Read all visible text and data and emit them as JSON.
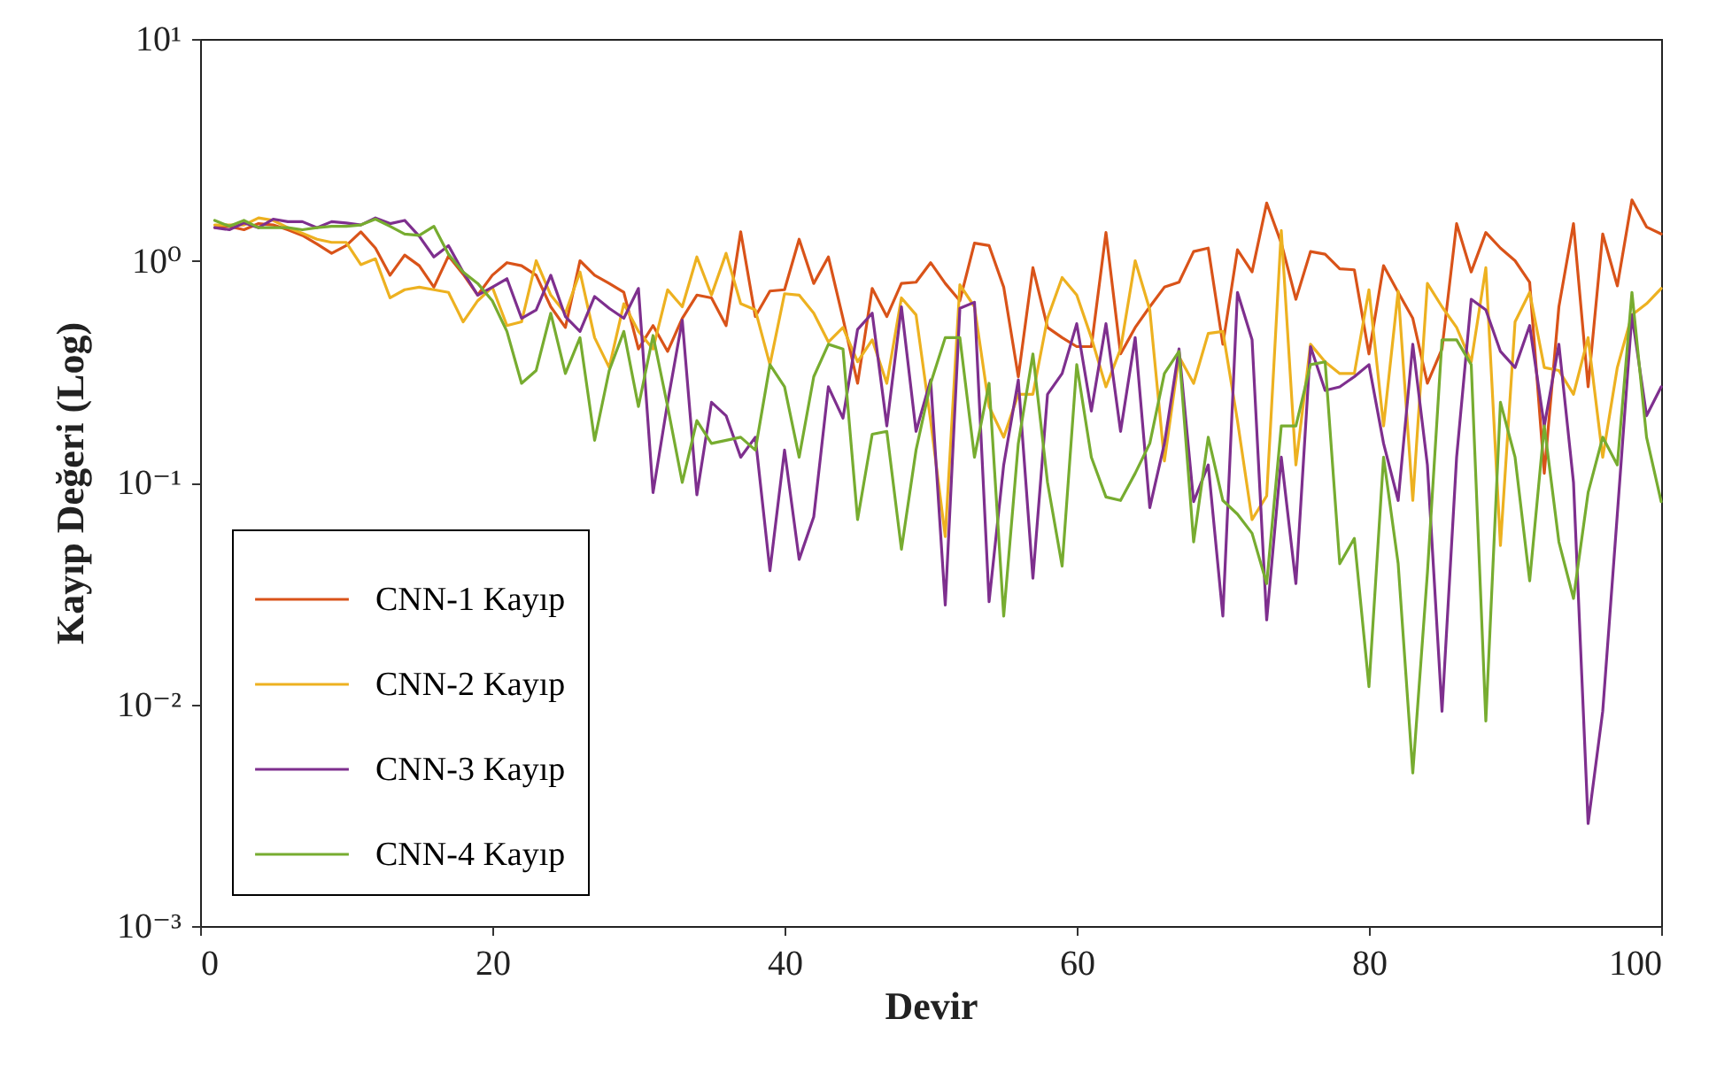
{
  "chart_data": {
    "type": "line",
    "xlabel": "Devir",
    "ylabel": "Kayıp Değeri (Log)",
    "x": [
      1,
      2,
      3,
      4,
      5,
      6,
      7,
      8,
      9,
      10,
      11,
      12,
      13,
      14,
      15,
      16,
      17,
      18,
      19,
      20,
      21,
      22,
      23,
      24,
      25,
      26,
      27,
      28,
      29,
      30,
      31,
      32,
      33,
      34,
      35,
      36,
      37,
      38,
      39,
      40,
      41,
      42,
      43,
      44,
      45,
      46,
      47,
      48,
      49,
      50,
      51,
      52,
      53,
      54,
      55,
      56,
      57,
      58,
      59,
      60,
      61,
      62,
      63,
      64,
      65,
      66,
      67,
      68,
      69,
      70,
      71,
      72,
      73,
      74,
      75,
      76,
      77,
      78,
      79,
      80,
      81,
      82,
      83,
      84,
      85,
      86,
      87,
      88,
      89,
      90,
      91,
      92,
      93,
      94,
      95,
      96,
      97,
      98,
      99,
      100
    ],
    "series": [
      {
        "name": "CNN-1 Kayıp",
        "color": "#d95319",
        "values": [
          1.41,
          1.43,
          1.38,
          1.47,
          1.45,
          1.38,
          1.3,
          1.19,
          1.08,
          1.17,
          1.35,
          1.14,
          0.86,
          1.06,
          0.95,
          0.76,
          1.05,
          0.87,
          0.7,
          0.86,
          0.98,
          0.95,
          0.86,
          0.62,
          0.5,
          1.0,
          0.86,
          0.79,
          0.72,
          0.4,
          0.51,
          0.39,
          0.55,
          0.7,
          0.68,
          0.51,
          1.35,
          0.56,
          0.73,
          0.74,
          1.25,
          0.79,
          1.04,
          0.55,
          0.28,
          0.75,
          0.56,
          0.79,
          0.8,
          0.98,
          0.79,
          0.66,
          1.2,
          1.17,
          0.76,
          0.3,
          0.93,
          0.5,
          0.45,
          0.41,
          0.41,
          1.34,
          0.38,
          0.5,
          0.62,
          0.76,
          0.8,
          1.1,
          1.14,
          0.42,
          1.12,
          0.89,
          1.82,
          1.2,
          0.67,
          1.1,
          1.07,
          0.92,
          0.91,
          0.38,
          0.95,
          0.72,
          0.55,
          0.28,
          0.4,
          1.47,
          0.89,
          1.34,
          1.14,
          1.0,
          0.8,
          0.11,
          0.62,
          1.47,
          0.27,
          1.32,
          0.77,
          1.88,
          1.42,
          1.32
        ]
      },
      {
        "name": "CNN-2 Kayıp",
        "color": "#edb120",
        "values": [
          1.45,
          1.45,
          1.45,
          1.56,
          1.52,
          1.41,
          1.33,
          1.25,
          1.21,
          1.21,
          0.96,
          1.02,
          0.68,
          0.74,
          0.76,
          0.74,
          0.72,
          0.53,
          0.66,
          0.76,
          0.51,
          0.53,
          1.0,
          0.7,
          0.58,
          0.89,
          0.45,
          0.33,
          0.64,
          0.48,
          0.4,
          0.74,
          0.62,
          1.04,
          0.7,
          1.08,
          0.64,
          0.6,
          0.34,
          0.71,
          0.7,
          0.58,
          0.43,
          0.5,
          0.35,
          0.44,
          0.28,
          0.68,
          0.57,
          0.19,
          0.057,
          0.78,
          0.62,
          0.22,
          0.16,
          0.25,
          0.25,
          0.55,
          0.84,
          0.7,
          0.45,
          0.27,
          0.4,
          1.0,
          0.6,
          0.125,
          0.37,
          0.28,
          0.47,
          0.48,
          0.19,
          0.068,
          0.087,
          1.37,
          0.12,
          0.42,
          0.35,
          0.31,
          0.31,
          0.74,
          0.18,
          0.73,
          0.083,
          0.79,
          0.62,
          0.5,
          0.35,
          0.93,
          0.052,
          0.53,
          0.72,
          0.33,
          0.32,
          0.25,
          0.45,
          0.13,
          0.33,
          0.57,
          0.64,
          0.75
        ]
      },
      {
        "name": "CNN-3 Kayıp",
        "color": "#7e2f8e",
        "values": [
          1.41,
          1.38,
          1.48,
          1.41,
          1.54,
          1.5,
          1.5,
          1.41,
          1.5,
          1.48,
          1.45,
          1.56,
          1.47,
          1.52,
          1.29,
          1.04,
          1.17,
          0.89,
          0.7,
          0.76,
          0.83,
          0.55,
          0.6,
          0.86,
          0.56,
          0.48,
          0.69,
          0.61,
          0.55,
          0.75,
          0.09,
          0.23,
          0.54,
          0.088,
          0.23,
          0.2,
          0.13,
          0.16,
          0.04,
          0.14,
          0.045,
          0.07,
          0.27,
          0.195,
          0.49,
          0.58,
          0.18,
          0.62,
          0.17,
          0.29,
          0.028,
          0.61,
          0.65,
          0.029,
          0.12,
          0.29,
          0.037,
          0.25,
          0.31,
          0.52,
          0.21,
          0.52,
          0.17,
          0.45,
          0.077,
          0.15,
          0.4,
          0.082,
          0.12,
          0.025,
          0.72,
          0.44,
          0.024,
          0.13,
          0.035,
          0.41,
          0.26,
          0.27,
          0.3,
          0.34,
          0.15,
          0.083,
          0.42,
          0.12,
          0.0093,
          0.13,
          0.67,
          0.6,
          0.39,
          0.33,
          0.51,
          0.18,
          0.42,
          0.1,
          0.0029,
          0.0093,
          0.072,
          0.57,
          0.2,
          0.27
        ]
      },
      {
        "name": "CNN-4 Kayıp",
        "color": "#77ac30",
        "values": [
          1.52,
          1.43,
          1.52,
          1.41,
          1.41,
          1.41,
          1.38,
          1.41,
          1.43,
          1.43,
          1.45,
          1.54,
          1.43,
          1.32,
          1.3,
          1.43,
          1.07,
          0.89,
          0.79,
          0.66,
          0.48,
          0.28,
          0.32,
          0.58,
          0.31,
          0.45,
          0.155,
          0.32,
          0.48,
          0.22,
          0.46,
          0.22,
          0.1,
          0.19,
          0.15,
          0.155,
          0.16,
          0.14,
          0.34,
          0.27,
          0.13,
          0.3,
          0.42,
          0.4,
          0.068,
          0.165,
          0.17,
          0.05,
          0.14,
          0.28,
          0.45,
          0.45,
          0.13,
          0.28,
          0.025,
          0.15,
          0.38,
          0.1,
          0.042,
          0.34,
          0.13,
          0.086,
          0.083,
          0.11,
          0.15,
          0.31,
          0.39,
          0.054,
          0.16,
          0.083,
          0.072,
          0.059,
          0.035,
          0.18,
          0.18,
          0.34,
          0.35,
          0.043,
          0.056,
          0.012,
          0.13,
          0.043,
          0.0049,
          0.039,
          0.44,
          0.44,
          0.34,
          0.0084,
          0.23,
          0.13,
          0.036,
          0.18,
          0.054,
          0.03,
          0.09,
          0.16,
          0.12,
          0.72,
          0.16,
          0.082
        ]
      }
    ],
    "xlim": [
      0,
      100
    ],
    "xticks": [
      0,
      20,
      40,
      60,
      80,
      100
    ],
    "ylim": [
      0.001,
      10
    ],
    "yticks": [
      {
        "value": 0.001,
        "label": "10⁻³"
      },
      {
        "value": 0.01,
        "label": "10⁻²"
      },
      {
        "value": 0.1,
        "label": "10⁻¹"
      },
      {
        "value": 1,
        "label": "10⁰"
      },
      {
        "value": 10,
        "label": "10¹"
      }
    ],
    "log": "y",
    "grid": false,
    "legend": "bottom left",
    "marker": "none",
    "line_style": "solid"
  }
}
